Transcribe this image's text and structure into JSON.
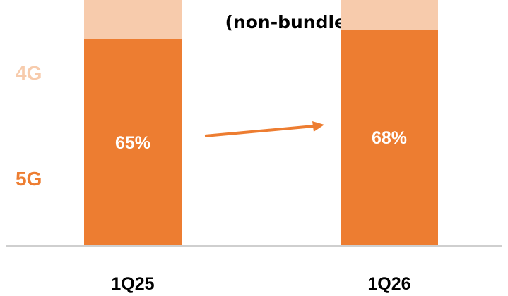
{
  "chart_data": {
    "type": "bar",
    "stacked": true,
    "subtitle": "(non-bundle)",
    "categories": [
      "1Q25",
      "1Q26"
    ],
    "ylim": [
      0,
      100
    ],
    "series": [
      {
        "name": "5G",
        "values": [
          65,
          68
        ],
        "labels": [
          "65%",
          "68%"
        ],
        "color": "#ED7D31"
      },
      {
        "name": "4G",
        "values": [
          35,
          32
        ],
        "color": "#F7CBAC"
      }
    ],
    "annotation": "arrow from 1Q25 to 1Q26 indicating increase",
    "grid": false,
    "legend": "left, inline labels",
    "colors": {
      "axis": "#bfbfbf",
      "arrow": "#ED7D31"
    }
  }
}
